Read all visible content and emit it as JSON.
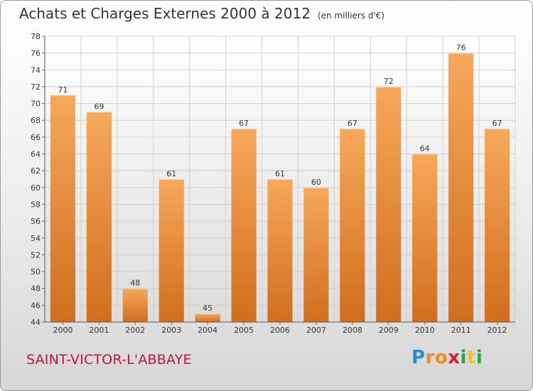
{
  "header": {
    "title": "Achats et Charges Externes 2000 à 2012",
    "unit": "(en milliers d'€)"
  },
  "footer": {
    "commune": "SAINT-VICTOR-L'ABBAYE",
    "logo_letters": [
      "P",
      "r",
      "o",
      "x",
      "i",
      "t",
      "i"
    ]
  },
  "colors": {
    "bar_top": "#f7a85a",
    "bar_bottom": "#d06e1c",
    "commune": "#c0143c",
    "logo": [
      "#1f8fd6",
      "#f08b1c",
      "#f08b1c",
      "#d81c28",
      "#27a844",
      "#f2c21a",
      "#27a844"
    ]
  },
  "chart_data": {
    "type": "bar",
    "title": "Achats et Charges Externes 2000 à 2012",
    "subtitle": "(en milliers d'€)",
    "xlabel": "",
    "ylabel": "",
    "categories": [
      "2000",
      "2001",
      "2002",
      "2003",
      "2004",
      "2005",
      "2006",
      "2007",
      "2008",
      "2009",
      "2010",
      "2011",
      "2012"
    ],
    "values": [
      71,
      69,
      48,
      61,
      45,
      67,
      61,
      60,
      67,
      72,
      64,
      76,
      67
    ],
    "ylim": [
      44,
      78
    ],
    "yticks": [
      44,
      46,
      48,
      50,
      52,
      54,
      56,
      58,
      60,
      62,
      64,
      66,
      68,
      70,
      72,
      74,
      76,
      78
    ],
    "grid": true,
    "legend": "none"
  }
}
